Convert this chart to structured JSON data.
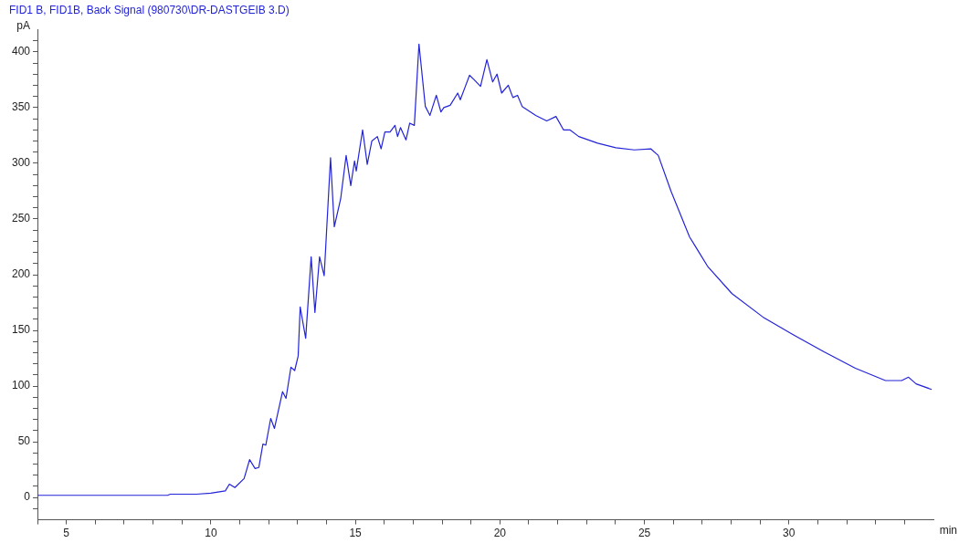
{
  "chart_data": {
    "type": "line",
    "title": "FID1 B, FID1B, Back Signal (980730\\DR-DASTGEIB 3.D)",
    "xlabel": "min",
    "ylabel": "pA",
    "xlim": [
      4,
      35
    ],
    "ylim": [
      -20,
      420
    ],
    "xticks": [
      {
        "value": 4,
        "label": null
      },
      5,
      {
        "value": 6,
        "label": null
      },
      {
        "value": 7,
        "label": null
      },
      {
        "value": 8,
        "label": null
      },
      {
        "value": 9,
        "label": null
      },
      10,
      {
        "value": 11,
        "label": null
      },
      {
        "value": 12,
        "label": null
      },
      {
        "value": 13,
        "label": null
      },
      {
        "value": 14,
        "label": null
      },
      15,
      {
        "value": 16,
        "label": null
      },
      {
        "value": 17,
        "label": null
      },
      {
        "value": 18,
        "label": null
      },
      {
        "value": 19,
        "label": null
      },
      20,
      {
        "value": 21,
        "label": null
      },
      {
        "value": 22,
        "label": null
      },
      {
        "value": 23,
        "label": null
      },
      {
        "value": 24,
        "label": null
      },
      25,
      {
        "value": 26,
        "label": null
      },
      {
        "value": 27,
        "label": null
      },
      {
        "value": 28,
        "label": null
      },
      {
        "value": 29,
        "label": null
      },
      30,
      {
        "value": 31,
        "label": null
      },
      {
        "value": 32,
        "label": null
      },
      {
        "value": 33,
        "label": null
      },
      {
        "value": 34,
        "label": null
      }
    ],
    "yticks": [
      {
        "value": -10,
        "label": null
      },
      0,
      {
        "value": 10,
        "label": null
      },
      {
        "value": 20,
        "label": null
      },
      {
        "value": 30,
        "label": null
      },
      {
        "value": 40,
        "label": null
      },
      50,
      {
        "value": 60,
        "label": null
      },
      {
        "value": 70,
        "label": null
      },
      {
        "value": 80,
        "label": null
      },
      {
        "value": 90,
        "label": null
      },
      100,
      {
        "value": 110,
        "label": null
      },
      {
        "value": 120,
        "label": null
      },
      {
        "value": 130,
        "label": null
      },
      {
        "value": 140,
        "label": null
      },
      150,
      {
        "value": 160,
        "label": null
      },
      {
        "value": 170,
        "label": null
      },
      {
        "value": 180,
        "label": null
      },
      {
        "value": 190,
        "label": null
      },
      200,
      {
        "value": 210,
        "label": null
      },
      {
        "value": 220,
        "label": null
      },
      {
        "value": 230,
        "label": null
      },
      {
        "value": 240,
        "label": null
      },
      250,
      {
        "value": 260,
        "label": null
      },
      {
        "value": 270,
        "label": null
      },
      {
        "value": 280,
        "label": null
      },
      {
        "value": 290,
        "label": null
      },
      300,
      {
        "value": 310,
        "label": null
      },
      {
        "value": 320,
        "label": null
      },
      {
        "value": 330,
        "label": null
      },
      {
        "value": 340,
        "label": null
      },
      350,
      {
        "value": 360,
        "label": null
      },
      {
        "value": 370,
        "label": null
      },
      {
        "value": 380,
        "label": null
      },
      {
        "value": 390,
        "label": null
      },
      400,
      {
        "value": 410,
        "label": null
      }
    ],
    "grid": false,
    "legend": false,
    "marker": "none",
    "line_style": "solid",
    "series": [
      {
        "color": "#2323d8",
        "x": [
          4,
          6,
          8.5,
          8.6,
          9.5,
          10,
          10.5,
          10.64,
          10.83,
          11.15,
          11.34,
          11.53,
          11.66,
          11.8,
          11.9,
          12.07,
          12.2,
          12.48,
          12.6,
          12.77,
          12.9,
          13.02,
          13.09,
          13.28,
          13.47,
          13.6,
          13.76,
          13.92,
          14.14,
          14.27,
          14.49,
          14.68,
          14.84,
          14.97,
          15.03,
          15.25,
          15.41,
          15.57,
          15.76,
          15.89,
          16.02,
          16.2,
          16.37,
          16.46,
          16.56,
          16.75,
          16.88,
          17.04,
          17.2,
          17.42,
          17.58,
          17.8,
          17.96,
          18.06,
          18.28,
          18.54,
          18.63,
          18.95,
          19.11,
          19.33,
          19.55,
          19.75,
          19.9,
          20.06,
          20.29,
          20.45,
          20.61,
          20.77,
          21.24,
          21.62,
          21.94,
          22.2,
          22.42,
          22.73,
          23.38,
          24.01,
          24.65,
          25.22,
          25.48,
          25.92,
          26.56,
          27.2,
          28.03,
          29.1,
          30.16,
          31.2,
          32.3,
          33.34,
          33.9,
          34.14,
          34.4,
          34.94
        ],
        "values": [
          2,
          2,
          2,
          3,
          3,
          4,
          6,
          12,
          9,
          17,
          34,
          26,
          27,
          48,
          47,
          71,
          62,
          95,
          89,
          117,
          114,
          127,
          171,
          143,
          216,
          166,
          216,
          199,
          305,
          243,
          268,
          307,
          280,
          302,
          293,
          330,
          299,
          320,
          324,
          313,
          328,
          328,
          334,
          324,
          332,
          321,
          336,
          334,
          407,
          351,
          343,
          361,
          346,
          350,
          352,
          363,
          357,
          379,
          375,
          369,
          393,
          373,
          380,
          363,
          370,
          359,
          361,
          351,
          343,
          338,
          342,
          330,
          330,
          324,
          318,
          314,
          312,
          313,
          307,
          275,
          234,
          207,
          183,
          162,
          146,
          131,
          116,
          105,
          105,
          108,
          102,
          97
        ]
      }
    ]
  }
}
